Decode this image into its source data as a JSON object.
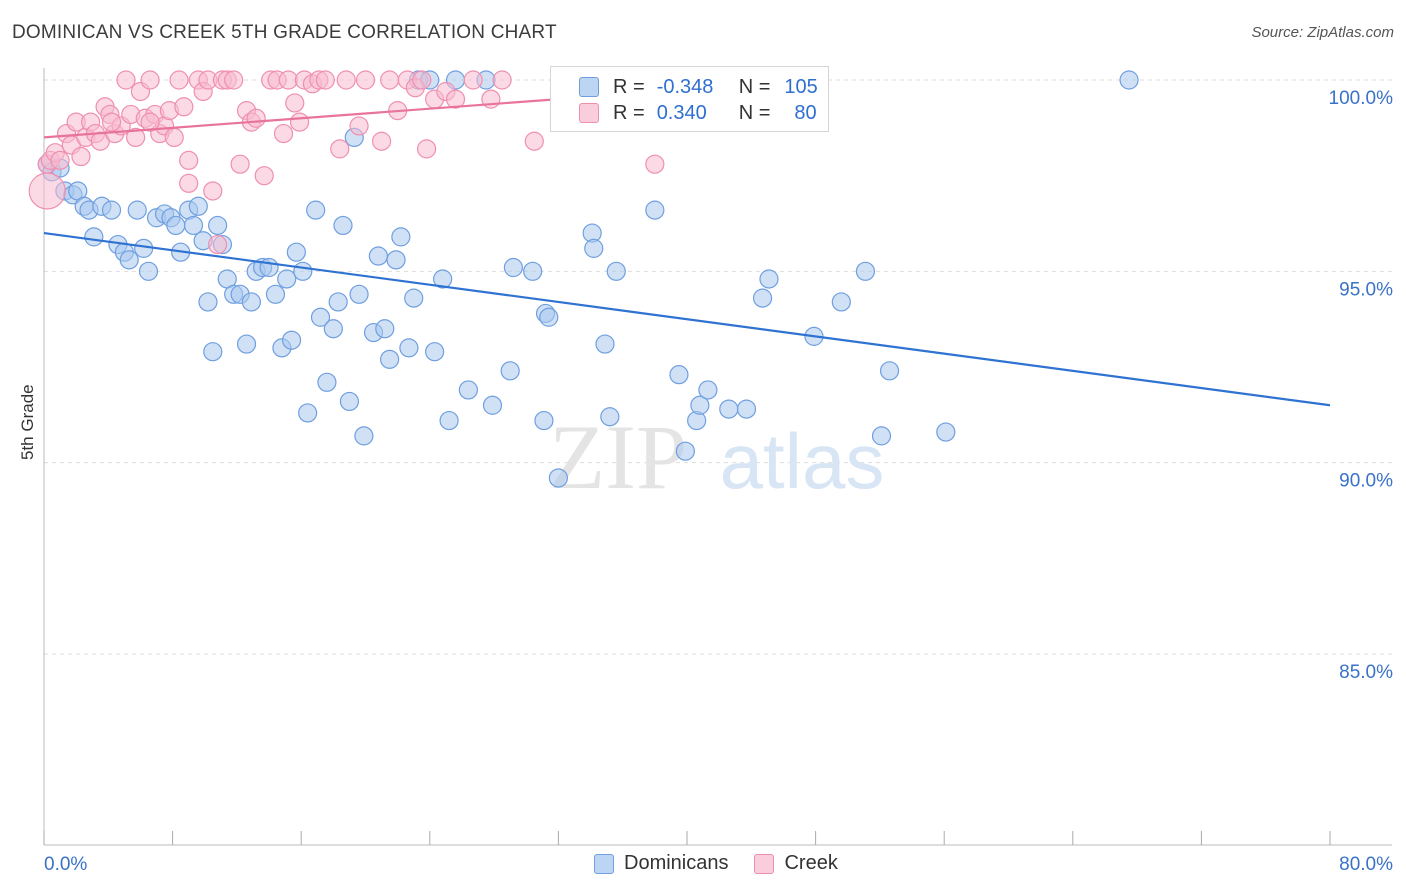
{
  "title": "DOMINICAN VS CREEK 5TH GRADE CORRELATION CHART",
  "source": "Source: ZipAtlas.com",
  "watermark": {
    "zip": "ZIP",
    "atlas": "atlas"
  },
  "legend_top": {
    "rows": [
      {
        "r_label": "R =",
        "r_value": "-0.348",
        "n_label": "N =",
        "n_value": "105"
      },
      {
        "r_label": "R =",
        "r_value": "0.340",
        "n_label": "N =",
        "n_value": "80"
      }
    ]
  },
  "legend_bottom": [
    "Dominicans",
    "Creek"
  ],
  "colors": {
    "blue_fill": "#a9c8ef",
    "blue_stroke": "#6f9fe0",
    "blue_line": "#2e72d2",
    "pink_fill": "#f7bcd0",
    "pink_stroke": "#ef8fb0",
    "pink_line": "#e8739d",
    "axis_text": "#3a72c8",
    "grid": "#dddddd"
  },
  "chart_data": {
    "type": "scatter",
    "title": "DOMINICAN VS CREEK 5TH GRADE CORRELATION CHART",
    "xlabel": "",
    "ylabel": "5th Grade",
    "xlim": [
      0,
      80
    ],
    "ylim": [
      80.4,
      101
    ],
    "x_tick_labels": [
      "0.0%",
      "80.0%"
    ],
    "y_ticks": [
      85,
      90,
      95,
      100
    ],
    "y_tick_labels": [
      "85.0%",
      "90.0%",
      "95.0%",
      "100.0%"
    ],
    "grid": true,
    "legend_position": "top-center",
    "series": [
      {
        "name": "Dominicans",
        "color": "#6f9fe0",
        "trend": {
          "x": [
            0,
            80
          ],
          "y": [
            96.0,
            91.5
          ]
        },
        "points": [
          [
            0.2,
            97.8
          ],
          [
            0.5,
            97.6
          ],
          [
            1.0,
            97.7
          ],
          [
            1.3,
            97.1
          ],
          [
            1.8,
            97.0
          ],
          [
            2.1,
            97.1
          ],
          [
            2.5,
            96.7
          ],
          [
            2.8,
            96.6
          ],
          [
            3.1,
            95.9
          ],
          [
            3.6,
            96.7
          ],
          [
            4.2,
            96.6
          ],
          [
            4.6,
            95.7
          ],
          [
            5.0,
            95.5
          ],
          [
            5.3,
            95.3
          ],
          [
            5.8,
            96.6
          ],
          [
            6.2,
            95.6
          ],
          [
            6.5,
            95.0
          ],
          [
            7.0,
            96.4
          ],
          [
            7.5,
            96.5
          ],
          [
            7.9,
            96.4
          ],
          [
            8.2,
            96.2
          ],
          [
            8.5,
            95.5
          ],
          [
            9.0,
            96.6
          ],
          [
            9.3,
            96.2
          ],
          [
            9.6,
            96.7
          ],
          [
            9.9,
            95.8
          ],
          [
            10.2,
            94.2
          ],
          [
            10.5,
            92.9
          ],
          [
            10.8,
            96.2
          ],
          [
            11.1,
            95.7
          ],
          [
            11.4,
            94.8
          ],
          [
            11.8,
            94.4
          ],
          [
            12.2,
            94.4
          ],
          [
            12.6,
            93.1
          ],
          [
            12.9,
            94.2
          ],
          [
            13.2,
            95.0
          ],
          [
            13.6,
            95.1
          ],
          [
            14.0,
            95.1
          ],
          [
            14.4,
            94.4
          ],
          [
            14.8,
            93.0
          ],
          [
            15.1,
            94.8
          ],
          [
            15.4,
            93.2
          ],
          [
            15.7,
            95.5
          ],
          [
            16.1,
            95.0
          ],
          [
            16.4,
            91.3
          ],
          [
            16.9,
            96.6
          ],
          [
            17.2,
            93.8
          ],
          [
            17.6,
            92.1
          ],
          [
            18.0,
            93.5
          ],
          [
            18.3,
            94.2
          ],
          [
            18.6,
            96.2
          ],
          [
            19.0,
            91.6
          ],
          [
            19.3,
            98.5
          ],
          [
            19.6,
            94.4
          ],
          [
            19.9,
            90.7
          ],
          [
            20.5,
            93.4
          ],
          [
            20.8,
            95.4
          ],
          [
            21.2,
            93.5
          ],
          [
            21.5,
            92.7
          ],
          [
            21.9,
            95.3
          ],
          [
            22.2,
            95.9
          ],
          [
            22.7,
            93.0
          ],
          [
            23.0,
            94.3
          ],
          [
            23.3,
            100.0
          ],
          [
            24.0,
            100.0
          ],
          [
            24.3,
            92.9
          ],
          [
            24.8,
            94.8
          ],
          [
            25.2,
            91.1
          ],
          [
            25.6,
            100.0
          ],
          [
            26.4,
            91.9
          ],
          [
            27.5,
            100.0
          ],
          [
            27.9,
            91.5
          ],
          [
            29.0,
            92.4
          ],
          [
            29.2,
            95.1
          ],
          [
            30.4,
            95.0
          ],
          [
            31.1,
            91.1
          ],
          [
            31.2,
            93.9
          ],
          [
            31.4,
            93.8
          ],
          [
            32.0,
            89.6
          ],
          [
            32.8,
            100.0
          ],
          [
            34.1,
            96.0
          ],
          [
            34.2,
            95.6
          ],
          [
            34.9,
            93.1
          ],
          [
            35.2,
            91.2
          ],
          [
            35.6,
            95.0
          ],
          [
            38.0,
            96.6
          ],
          [
            39.5,
            92.3
          ],
          [
            39.9,
            90.3
          ],
          [
            40.6,
            91.1
          ],
          [
            40.8,
            91.5
          ],
          [
            41.3,
            91.9
          ],
          [
            42.6,
            91.4
          ],
          [
            43.7,
            91.4
          ],
          [
            44.3,
            100.0
          ],
          [
            44.7,
            94.3
          ],
          [
            45.1,
            94.8
          ],
          [
            47.9,
            93.3
          ],
          [
            49.6,
            94.2
          ],
          [
            51.1,
            95.0
          ],
          [
            52.1,
            90.7
          ],
          [
            52.6,
            92.4
          ],
          [
            56.1,
            90.8
          ],
          [
            67.5,
            100.0
          ]
        ]
      },
      {
        "name": "Creek",
        "color": "#ef8fb0",
        "trend": {
          "x": [
            0,
            48
          ],
          "y": [
            98.5,
            100.0
          ]
        },
        "points": [
          [
            0.2,
            97.8
          ],
          [
            0.4,
            97.9
          ],
          [
            0.7,
            98.1
          ],
          [
            1.0,
            97.9
          ],
          [
            1.4,
            98.6
          ],
          [
            1.7,
            98.3
          ],
          [
            2.0,
            98.9
          ],
          [
            2.3,
            98.0
          ],
          [
            2.6,
            98.5
          ],
          [
            2.9,
            98.9
          ],
          [
            3.2,
            98.6
          ],
          [
            3.5,
            98.4
          ],
          [
            3.8,
            99.3
          ],
          [
            4.1,
            99.1
          ],
          [
            4.4,
            98.6
          ],
          [
            4.8,
            98.8
          ],
          [
            5.1,
            100.0
          ],
          [
            5.4,
            99.1
          ],
          [
            5.7,
            98.5
          ],
          [
            6.0,
            99.7
          ],
          [
            6.3,
            99.0
          ],
          [
            6.6,
            100.0
          ],
          [
            6.9,
            99.1
          ],
          [
            7.2,
            98.6
          ],
          [
            7.5,
            98.8
          ],
          [
            7.8,
            99.2
          ],
          [
            8.1,
            98.5
          ],
          [
            8.4,
            100.0
          ],
          [
            8.7,
            99.3
          ],
          [
            9.0,
            97.9
          ],
          [
            9.0,
            97.3
          ],
          [
            9.6,
            100.0
          ],
          [
            9.9,
            99.7
          ],
          [
            10.2,
            100.0
          ],
          [
            10.5,
            97.1
          ],
          [
            10.8,
            95.7
          ],
          [
            11.1,
            100.0
          ],
          [
            11.4,
            100.0
          ],
          [
            11.8,
            100.0
          ],
          [
            12.2,
            97.8
          ],
          [
            12.6,
            99.2
          ],
          [
            12.9,
            98.9
          ],
          [
            13.2,
            99.0
          ],
          [
            13.7,
            97.5
          ],
          [
            14.1,
            100.0
          ],
          [
            14.5,
            100.0
          ],
          [
            14.9,
            98.6
          ],
          [
            15.2,
            100.0
          ],
          [
            15.6,
            99.4
          ],
          [
            15.9,
            98.9
          ],
          [
            16.2,
            100.0
          ],
          [
            16.7,
            99.9
          ],
          [
            17.1,
            100.0
          ],
          [
            17.5,
            100.0
          ],
          [
            18.4,
            98.2
          ],
          [
            18.8,
            100.0
          ],
          [
            19.6,
            98.8
          ],
          [
            20.0,
            100.0
          ],
          [
            21.0,
            98.4
          ],
          [
            21.5,
            100.0
          ],
          [
            22.0,
            99.2
          ],
          [
            22.6,
            100.0
          ],
          [
            23.1,
            99.8
          ],
          [
            23.5,
            100.0
          ],
          [
            23.8,
            98.2
          ],
          [
            24.3,
            99.5
          ],
          [
            25.0,
            99.7
          ],
          [
            25.6,
            99.5
          ],
          [
            26.7,
            100.0
          ],
          [
            27.8,
            99.5
          ],
          [
            28.5,
            100.0
          ],
          [
            30.5,
            98.4
          ],
          [
            35.8,
            100.0
          ],
          [
            38.0,
            97.8
          ],
          [
            42.5,
            100.0
          ],
          [
            46.6,
            100.0
          ],
          [
            47.8,
            100.0
          ],
          [
            44.7,
            100.0
          ],
          [
            4.2,
            98.9
          ],
          [
            6.6,
            98.9
          ]
        ]
      }
    ],
    "big_points": [
      {
        "series": "Creek",
        "x": 0.2,
        "y": 97.1
      }
    ]
  }
}
